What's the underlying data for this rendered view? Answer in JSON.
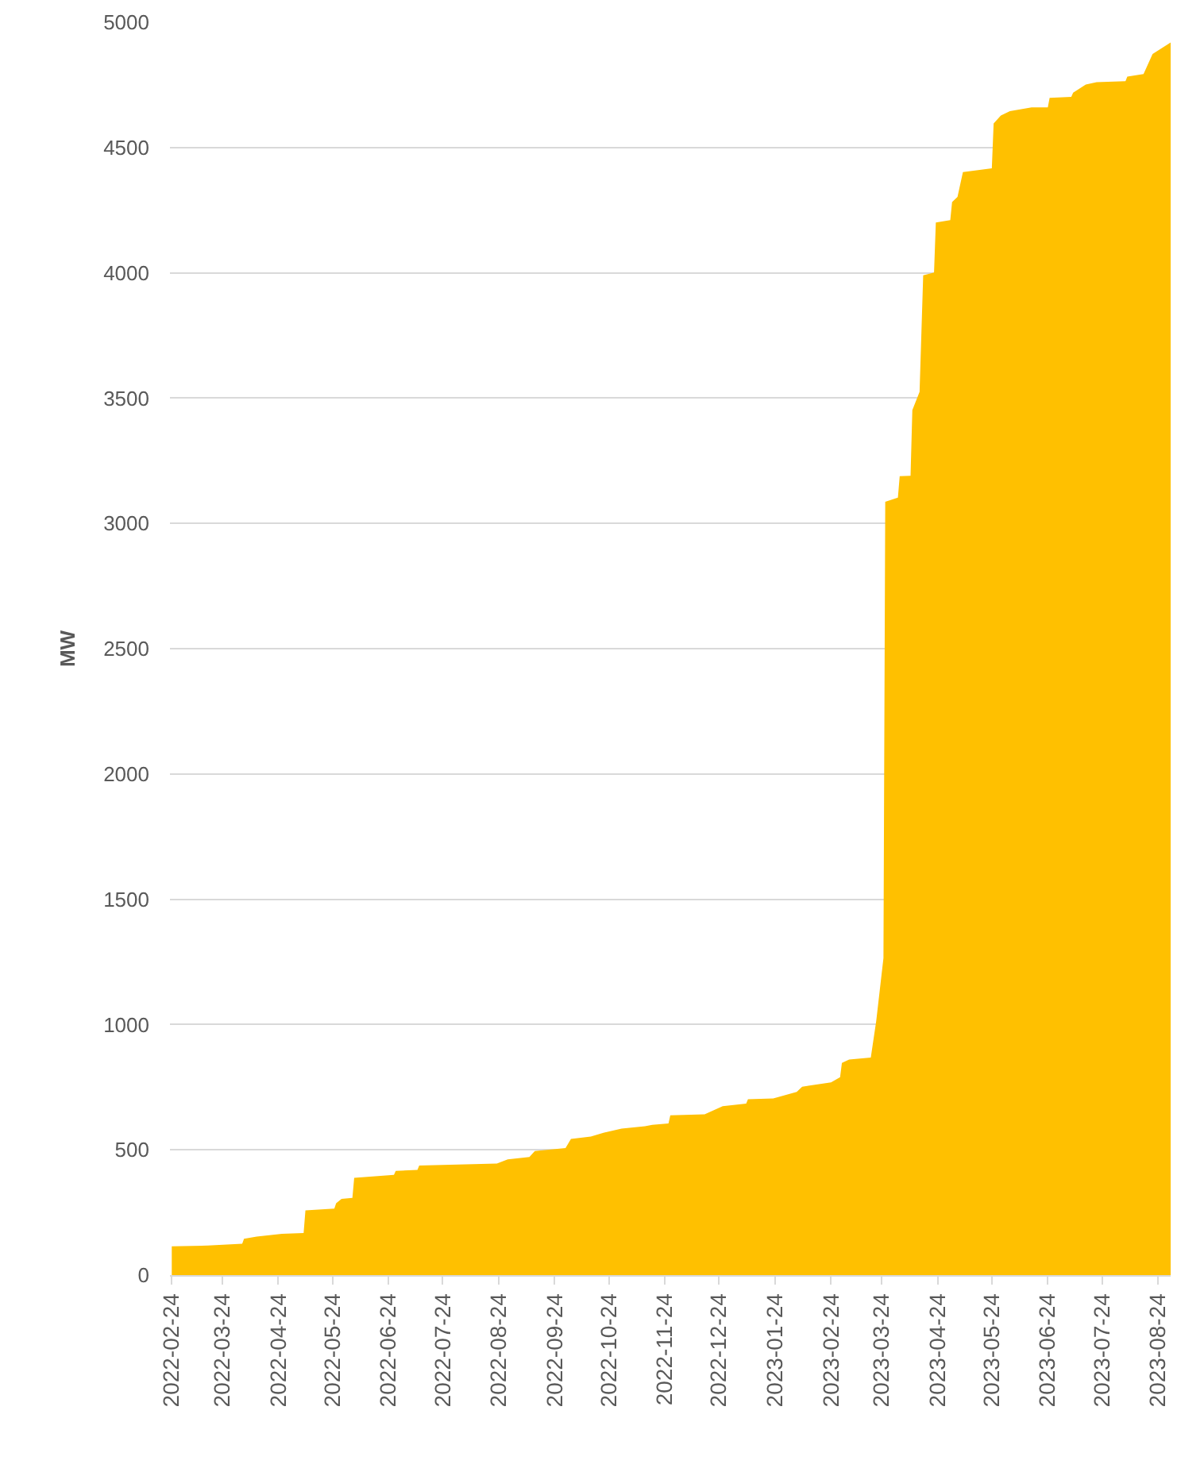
{
  "chart_data": {
    "type": "area",
    "ylabel": "MW",
    "color": "#ffc000",
    "x": [
      "2022-02-24",
      "2022-03-16",
      "2022-04-04",
      "2022-04-05",
      "2022-04-12",
      "2022-04-26",
      "2022-05-08",
      "2022-05-09",
      "2022-05-25",
      "2022-05-26",
      "2022-05-29",
      "2022-06-04",
      "2022-06-05",
      "2022-06-27",
      "2022-06-28",
      "2022-07-10",
      "2022-07-11",
      "2022-08-23",
      "2022-08-29",
      "2022-09-10",
      "2022-09-13",
      "2022-09-30",
      "2022-10-03",
      "2022-10-14",
      "2022-10-21",
      "2022-10-31",
      "2022-11-13",
      "2022-11-17",
      "2022-11-26",
      "2022-11-27",
      "2022-12-16",
      "2022-12-26",
      "2023-01-08",
      "2023-01-09",
      "2023-01-23",
      "2023-02-05",
      "2023-02-08",
      "2023-02-24",
      "2023-03-01",
      "2023-03-02",
      "2023-03-06",
      "2023-03-18",
      "2023-03-21",
      "2023-03-25",
      "2023-03-26",
      "2023-04-02",
      "2023-04-03",
      "2023-04-09",
      "2023-04-10",
      "2023-04-14",
      "2023-04-16",
      "2023-04-22",
      "2023-04-23",
      "2023-05-01",
      "2023-05-02",
      "2023-05-05",
      "2023-05-08",
      "2023-05-24",
      "2023-05-25",
      "2023-05-29",
      "2023-06-03",
      "2023-06-15",
      "2023-06-24",
      "2023-06-25",
      "2023-07-07",
      "2023-07-08",
      "2023-07-15",
      "2023-07-21",
      "2023-08-06",
      "2023-08-07",
      "2023-08-16",
      "2023-08-21",
      "2023-08-31"
    ],
    "values": [
      115,
      118,
      125,
      145,
      154,
      165,
      168,
      258,
      265,
      287,
      304,
      308,
      388,
      400,
      416,
      420,
      437,
      445,
      462,
      471,
      495,
      507,
      543,
      553,
      568,
      585,
      594,
      600,
      605,
      638,
      642,
      674,
      684,
      702,
      705,
      731,
      752,
      769,
      790,
      847,
      860,
      868,
      1014,
      1265,
      3086,
      3103,
      3188,
      3190,
      3452,
      3525,
      3990,
      4001,
      4201,
      4210,
      4282,
      4303,
      4402,
      4417,
      4596,
      4628,
      4645,
      4660,
      4660,
      4698,
      4702,
      4719,
      4751,
      4761,
      4765,
      4783,
      4793,
      4873,
      4919
    ],
    "xlim": [
      "2022-02-23",
      "2023-08-31"
    ],
    "xticks": [
      "2022-02-24",
      "2022-03-24",
      "2022-04-24",
      "2022-05-24",
      "2022-06-24",
      "2022-07-24",
      "2022-08-24",
      "2022-09-24",
      "2022-10-24",
      "2022-11-24",
      "2022-12-24",
      "2023-01-24",
      "2023-02-24",
      "2023-03-24",
      "2023-04-24",
      "2023-05-24",
      "2023-06-24",
      "2023-07-24",
      "2023-08-24"
    ],
    "ylim": [
      0,
      5000
    ],
    "yticks": [
      0,
      500,
      1000,
      1500,
      2000,
      2500,
      3000,
      3500,
      4000,
      4500,
      5000
    ],
    "grid": "y"
  }
}
